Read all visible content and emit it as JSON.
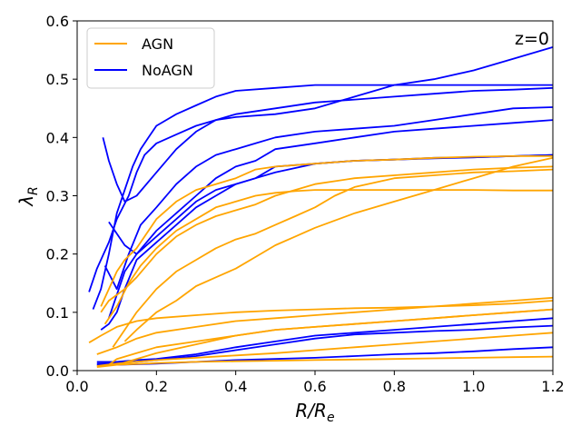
{
  "chart_data": {
    "type": "line",
    "title": "",
    "annotation": "z=0",
    "xlabel_main": "R/R",
    "xlabel_sub": "e",
    "ylabel_main": "λ",
    "ylabel_sub": "R",
    "xlim": [
      0.0,
      1.2
    ],
    "ylim": [
      0.0,
      0.6
    ],
    "xticks": [
      0.0,
      0.2,
      0.4,
      0.6,
      0.8,
      1.0,
      1.2
    ],
    "xtick_labels": [
      "0.0",
      "0.2",
      "0.4",
      "0.6",
      "0.8",
      "1.0",
      "1.2"
    ],
    "yticks": [
      0.0,
      0.1,
      0.2,
      0.3,
      0.4,
      0.5,
      0.6
    ],
    "ytick_labels": [
      "0.0",
      "0.1",
      "0.2",
      "0.3",
      "0.4",
      "0.5",
      "0.6"
    ],
    "grid": false,
    "legend_position": "top-left",
    "colors": {
      "AGN": "#FFA500",
      "NoAGN": "#0000FF"
    },
    "legend": [
      {
        "name": "AGN",
        "color": "#FFA500"
      },
      {
        "name": "NoAGN",
        "color": "#0000FF"
      }
    ],
    "series": [
      {
        "group": "NoAGN",
        "name": "NoAGN-1",
        "x": [
          0.03,
          0.05,
          0.08,
          0.1,
          0.13,
          0.15,
          0.17,
          0.2,
          0.25,
          0.3,
          0.35,
          0.4,
          0.5,
          0.6,
          0.7,
          0.8,
          0.9,
          1.0,
          1.1,
          1.2
        ],
        "y": [
          0.135,
          0.175,
          0.22,
          0.26,
          0.3,
          0.34,
          0.37,
          0.39,
          0.405,
          0.42,
          0.43,
          0.435,
          0.44,
          0.45,
          0.47,
          0.49,
          0.5,
          0.515,
          0.535,
          0.555
        ]
      },
      {
        "group": "NoAGN",
        "name": "NoAGN-2",
        "x": [
          0.04,
          0.06,
          0.08,
          0.1,
          0.12,
          0.14,
          0.16,
          0.18,
          0.2,
          0.25,
          0.3,
          0.35,
          0.4,
          0.5,
          0.6,
          0.7,
          0.8,
          0.9,
          1.0,
          1.1,
          1.2
        ],
        "y": [
          0.105,
          0.14,
          0.2,
          0.27,
          0.31,
          0.35,
          0.38,
          0.4,
          0.42,
          0.44,
          0.455,
          0.47,
          0.48,
          0.485,
          0.49,
          0.49,
          0.49,
          0.49,
          0.49,
          0.49,
          0.49
        ]
      },
      {
        "group": "NoAGN",
        "name": "NoAGN-3",
        "x": [
          0.065,
          0.08,
          0.1,
          0.12,
          0.15,
          0.2,
          0.25,
          0.3,
          0.35,
          0.4,
          0.5,
          0.6,
          0.7,
          0.8,
          0.9,
          1.0,
          1.1,
          1.2
        ],
        "y": [
          0.4,
          0.36,
          0.32,
          0.29,
          0.3,
          0.34,
          0.38,
          0.41,
          0.43,
          0.44,
          0.45,
          0.46,
          0.465,
          0.47,
          0.475,
          0.48,
          0.482,
          0.485
        ]
      },
      {
        "group": "NoAGN",
        "name": "NoAGN-4",
        "x": [
          0.07,
          0.1,
          0.13,
          0.16,
          0.2,
          0.25,
          0.3,
          0.35,
          0.4,
          0.45,
          0.5,
          0.6,
          0.7,
          0.8,
          0.9,
          1.0,
          1.1,
          1.2
        ],
        "y": [
          0.18,
          0.14,
          0.2,
          0.25,
          0.28,
          0.32,
          0.35,
          0.37,
          0.38,
          0.39,
          0.4,
          0.41,
          0.415,
          0.42,
          0.43,
          0.44,
          0.45,
          0.452
        ]
      },
      {
        "group": "NoAGN",
        "name": "NoAGN-5",
        "x": [
          0.08,
          0.1,
          0.12,
          0.15,
          0.2,
          0.25,
          0.3,
          0.35,
          0.4,
          0.45,
          0.5,
          0.6,
          0.7,
          0.8,
          0.9,
          1.0,
          1.1,
          1.2
        ],
        "y": [
          0.255,
          0.235,
          0.215,
          0.2,
          0.24,
          0.27,
          0.3,
          0.33,
          0.35,
          0.36,
          0.38,
          0.39,
          0.4,
          0.41,
          0.415,
          0.42,
          0.425,
          0.43
        ]
      },
      {
        "group": "NoAGN",
        "name": "NoAGN-6",
        "x": [
          0.08,
          0.1,
          0.12,
          0.15,
          0.2,
          0.25,
          0.3,
          0.35,
          0.4,
          0.45,
          0.5,
          0.6,
          0.7,
          0.8,
          0.9,
          1.0,
          1.1,
          1.2
        ],
        "y": [
          0.09,
          0.13,
          0.17,
          0.2,
          0.23,
          0.26,
          0.29,
          0.31,
          0.32,
          0.33,
          0.35,
          0.355,
          0.36,
          0.362,
          0.364,
          0.366,
          0.368,
          0.37
        ]
      },
      {
        "group": "NoAGN",
        "name": "NoAGN-7",
        "x": [
          0.06,
          0.08,
          0.1,
          0.12,
          0.15,
          0.2,
          0.25,
          0.3,
          0.35,
          0.4,
          0.45,
          0.5,
          0.6,
          0.7,
          0.8,
          0.9,
          1.0,
          1.1,
          1.2
        ],
        "y": [
          0.07,
          0.08,
          0.1,
          0.14,
          0.19,
          0.22,
          0.25,
          0.28,
          0.3,
          0.32,
          0.33,
          0.34,
          0.355,
          0.36,
          0.362,
          0.365,
          0.366,
          0.368,
          0.37
        ]
      },
      {
        "group": "NoAGN",
        "name": "NoAGN-8",
        "x": [
          0.05,
          0.1,
          0.15,
          0.2,
          0.3,
          0.4,
          0.5,
          0.6,
          0.7,
          0.8,
          0.9,
          1.0,
          1.1,
          1.2
        ],
        "y": [
          0.015,
          0.015,
          0.018,
          0.02,
          0.028,
          0.04,
          0.05,
          0.06,
          0.065,
          0.07,
          0.075,
          0.08,
          0.085,
          0.09
        ]
      },
      {
        "group": "NoAGN",
        "name": "NoAGN-9",
        "x": [
          0.05,
          0.1,
          0.15,
          0.2,
          0.3,
          0.4,
          0.5,
          0.6,
          0.7,
          0.8,
          0.9,
          1.0,
          1.1,
          1.2
        ],
        "y": [
          0.012,
          0.013,
          0.015,
          0.018,
          0.025,
          0.035,
          0.045,
          0.055,
          0.062,
          0.065,
          0.068,
          0.07,
          0.074,
          0.077
        ]
      },
      {
        "group": "NoAGN",
        "name": "NoAGN-10",
        "x": [
          0.05,
          0.1,
          0.2,
          0.3,
          0.4,
          0.5,
          0.6,
          0.7,
          0.8,
          0.9,
          1.0,
          1.1,
          1.2
        ],
        "y": [
          0.01,
          0.01,
          0.012,
          0.015,
          0.018,
          0.02,
          0.022,
          0.025,
          0.028,
          0.03,
          0.033,
          0.037,
          0.04
        ]
      },
      {
        "group": "AGN",
        "name": "AGN-1",
        "x": [
          0.06,
          0.08,
          0.1,
          0.12,
          0.15,
          0.2,
          0.25,
          0.3,
          0.35,
          0.4,
          0.45,
          0.5,
          0.6,
          0.7,
          0.8,
          0.9,
          1.0,
          1.1,
          1.2
        ],
        "y": [
          0.11,
          0.14,
          0.17,
          0.19,
          0.21,
          0.26,
          0.29,
          0.31,
          0.32,
          0.33,
          0.345,
          0.35,
          0.355,
          0.36,
          0.362,
          0.365,
          0.367,
          0.368,
          0.368
        ]
      },
      {
        "group": "AGN",
        "name": "AGN-2",
        "x": [
          0.07,
          0.1,
          0.13,
          0.16,
          0.2,
          0.25,
          0.3,
          0.35,
          0.4,
          0.45,
          0.5,
          0.55,
          0.6,
          0.7,
          0.8,
          0.9,
          1.0,
          1.1,
          1.2
        ],
        "y": [
          0.08,
          0.11,
          0.15,
          0.18,
          0.21,
          0.24,
          0.26,
          0.28,
          0.29,
          0.3,
          0.305,
          0.308,
          0.31,
          0.31,
          0.31,
          0.31,
          0.31,
          0.309,
          0.309
        ]
      },
      {
        "group": "AGN",
        "name": "AGN-3",
        "x": [
          0.06,
          0.08,
          0.1,
          0.12,
          0.15,
          0.2,
          0.25,
          0.3,
          0.35,
          0.4,
          0.45,
          0.5,
          0.6,
          0.7,
          0.8,
          0.9,
          1.0,
          1.1,
          1.2
        ],
        "y": [
          0.1,
          0.12,
          0.13,
          0.14,
          0.16,
          0.2,
          0.23,
          0.25,
          0.265,
          0.275,
          0.285,
          0.3,
          0.32,
          0.33,
          0.335,
          0.34,
          0.345,
          0.348,
          0.35
        ]
      },
      {
        "group": "AGN",
        "name": "AGN-4",
        "x": [
          0.09,
          0.12,
          0.15,
          0.2,
          0.25,
          0.3,
          0.35,
          0.4,
          0.45,
          0.5,
          0.55,
          0.6,
          0.65,
          0.7,
          0.8,
          0.9,
          1.0,
          1.1,
          1.2
        ],
        "y": [
          0.04,
          0.07,
          0.1,
          0.14,
          0.17,
          0.19,
          0.21,
          0.225,
          0.235,
          0.25,
          0.265,
          0.28,
          0.3,
          0.315,
          0.33,
          0.335,
          0.34,
          0.342,
          0.345
        ]
      },
      {
        "group": "AGN",
        "name": "AGN-5",
        "x": [
          0.12,
          0.15,
          0.2,
          0.25,
          0.3,
          0.35,
          0.4,
          0.45,
          0.5,
          0.55,
          0.6,
          0.7,
          0.8,
          0.9,
          1.0,
          1.1,
          1.2
        ],
        "y": [
          0.05,
          0.07,
          0.1,
          0.12,
          0.145,
          0.16,
          0.175,
          0.195,
          0.215,
          0.23,
          0.245,
          0.27,
          0.29,
          0.31,
          0.33,
          0.35,
          0.365
        ]
      },
      {
        "group": "AGN",
        "name": "AGN-6",
        "x": [
          0.03,
          0.06,
          0.1,
          0.15,
          0.2,
          0.3,
          0.4,
          0.5,
          0.6,
          0.7,
          0.8,
          0.9,
          1.0,
          1.1,
          1.2
        ],
        "y": [
          0.048,
          0.06,
          0.075,
          0.085,
          0.09,
          0.095,
          0.1,
          0.103,
          0.105,
          0.107,
          0.108,
          0.11,
          0.112,
          0.115,
          0.12
        ]
      },
      {
        "group": "AGN",
        "name": "AGN-7",
        "x": [
          0.05,
          0.1,
          0.15,
          0.2,
          0.3,
          0.4,
          0.5,
          0.6,
          0.7,
          0.8,
          0.9,
          1.0,
          1.1,
          1.2
        ],
        "y": [
          0.028,
          0.04,
          0.055,
          0.065,
          0.075,
          0.085,
          0.09,
          0.095,
          0.1,
          0.105,
          0.11,
          0.115,
          0.12,
          0.125
        ]
      },
      {
        "group": "AGN",
        "name": "AGN-8",
        "x": [
          0.08,
          0.1,
          0.15,
          0.2,
          0.3,
          0.4,
          0.5,
          0.6,
          0.7,
          0.8,
          0.9,
          1.0,
          1.1,
          1.2
        ],
        "y": [
          0.01,
          0.02,
          0.03,
          0.04,
          0.05,
          0.06,
          0.07,
          0.075,
          0.08,
          0.085,
          0.09,
          0.095,
          0.1,
          0.105
        ]
      },
      {
        "group": "AGN",
        "name": "AGN-9",
        "x": [
          0.1,
          0.15,
          0.2,
          0.3,
          0.4,
          0.5,
          0.6,
          0.7,
          0.8,
          0.9,
          1.0,
          1.1,
          1.2
        ],
        "y": [
          0.01,
          0.02,
          0.03,
          0.045,
          0.06,
          0.07,
          0.075,
          0.08,
          0.085,
          0.09,
          0.095,
          0.1,
          0.105
        ]
      },
      {
        "group": "AGN",
        "name": "AGN-10",
        "x": [
          0.05,
          0.1,
          0.2,
          0.3,
          0.4,
          0.5,
          0.6,
          0.7,
          0.8,
          0.9,
          1.0,
          1.1,
          1.2
        ],
        "y": [
          0.008,
          0.012,
          0.018,
          0.022,
          0.026,
          0.03,
          0.035,
          0.04,
          0.045,
          0.05,
          0.055,
          0.06,
          0.065
        ]
      },
      {
        "group": "AGN",
        "name": "AGN-11",
        "x": [
          0.05,
          0.1,
          0.2,
          0.3,
          0.4,
          0.5,
          0.6,
          0.7,
          0.8,
          0.9,
          1.0,
          1.1,
          1.2
        ],
        "y": [
          0.006,
          0.01,
          0.013,
          0.015,
          0.016,
          0.017,
          0.018,
          0.019,
          0.02,
          0.021,
          0.022,
          0.023,
          0.024
        ]
      }
    ]
  }
}
